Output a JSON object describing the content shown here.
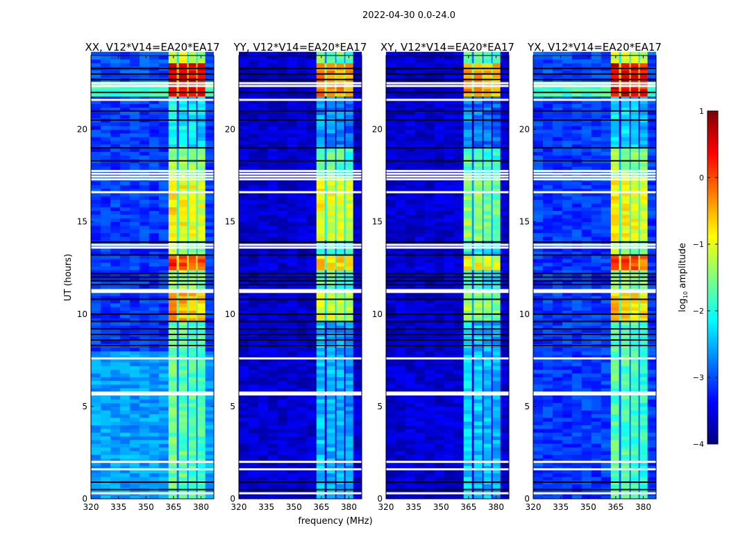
{
  "chart_data": {
    "type": "heatmap",
    "title": "2022-04-30 0.0-24.0",
    "xlabel": "frequency (MHz)",
    "ylabel": "UT (hours)",
    "xlim": [
      320,
      387
    ],
    "ylim": [
      0,
      24
    ],
    "xticks": [
      320,
      335,
      350,
      365,
      380
    ],
    "yticks": [
      0,
      5,
      10,
      15,
      20
    ],
    "colorbar": {
      "label": "log",
      "label_sub": "10",
      "label_rest": " amplitude",
      "range": [
        -4,
        1
      ],
      "ticks": [
        1,
        0,
        -1,
        -2,
        -3,
        -4
      ],
      "tick_labels": [
        "1",
        "0",
        "−1",
        "−2",
        "−3",
        "−4"
      ],
      "colormap": "jet"
    },
    "rfi_bands_mhz": [
      [
        362.3,
        366.8
      ],
      [
        367.9,
        372.5
      ],
      [
        373.2,
        377.4
      ],
      [
        378.1,
        382.3
      ]
    ],
    "flagged_rows_hours": [
      0.3,
      1.6,
      2.0,
      5.65,
      5.75,
      7.6,
      11.2,
      11.3,
      13.6,
      13.75,
      16.6,
      17.3,
      17.45,
      17.6,
      17.75,
      21.6,
      22.35,
      22.5
    ],
    "dark_rows_hours": [
      0.5,
      0.9,
      8.3,
      8.6,
      8.9,
      9.2,
      9.6,
      10.0,
      10.8,
      11.6,
      11.8,
      12.0,
      12.2,
      13.2,
      13.9,
      18.3,
      19.0,
      20.5,
      21.0,
      22.0,
      22.7,
      23.0,
      23.3
    ],
    "panels": [
      {
        "title": "XX, V12*V14=EA20*EA17",
        "background": [
          {
            "t": [
              0,
              8
            ],
            "level": -2.6
          },
          {
            "t": [
              8,
              21.8
            ],
            "level": -3.1
          },
          {
            "t": [
              21.8,
              22.6
            ],
            "level": -1.8
          },
          {
            "t": [
              22.6,
              24
            ],
            "level": -3.0
          }
        ],
        "band": [
          {
            "t": [
              0,
              5.7
            ],
            "level": -1.6
          },
          {
            "t": [
              5.7,
              9.5
            ],
            "level": -1.6
          },
          {
            "t": [
              9.5,
              11.2
            ],
            "level": -0.4
          },
          {
            "t": [
              11.2,
              12.3
            ],
            "level": -1.2
          },
          {
            "t": [
              12.3,
              13.1
            ],
            "level": 0.2
          },
          {
            "t": [
              13.1,
              14.0
            ],
            "level": -1.2
          },
          {
            "t": [
              14.0,
              17.4
            ],
            "level": -0.8
          },
          {
            "t": [
              17.4,
              19.0
            ],
            "level": -1.3
          },
          {
            "t": [
              19.0,
              21.8
            ],
            "level": -2.1
          },
          {
            "t": [
              21.8,
              23.5
            ],
            "level": 0.6
          },
          {
            "t": [
              23.5,
              24
            ],
            "level": -1.0
          }
        ]
      },
      {
        "title": "YY, V12*V14=EA20*EA17",
        "background": [
          {
            "t": [
              0,
              24
            ],
            "level": -3.6
          }
        ],
        "band": [
          {
            "t": [
              0,
              9.5
            ],
            "level": -2.4
          },
          {
            "t": [
              9.5,
              11.2
            ],
            "level": -1.0
          },
          {
            "t": [
              11.2,
              12.3
            ],
            "level": -1.7
          },
          {
            "t": [
              12.3,
              13.1
            ],
            "level": -0.6
          },
          {
            "t": [
              13.1,
              14.0
            ],
            "level": -1.8
          },
          {
            "t": [
              14.0,
              17.4
            ],
            "level": -0.9
          },
          {
            "t": [
              17.4,
              19.0
            ],
            "level": -1.6
          },
          {
            "t": [
              19.0,
              21.8
            ],
            "level": -2.6
          },
          {
            "t": [
              21.8,
              23.5
            ],
            "level": -0.2
          },
          {
            "t": [
              23.5,
              24
            ],
            "level": -1.5
          }
        ]
      },
      {
        "title": "XY, V12*V14=EA20*EA17",
        "background": [
          {
            "t": [
              0,
              24
            ],
            "level": -3.6
          }
        ],
        "band": [
          {
            "t": [
              0,
              9.5
            ],
            "level": -2.3
          },
          {
            "t": [
              9.5,
              11.2
            ],
            "level": -1.3
          },
          {
            "t": [
              11.2,
              12.3
            ],
            "level": -1.9
          },
          {
            "t": [
              12.3,
              13.1
            ],
            "level": -0.8
          },
          {
            "t": [
              13.1,
              14.0
            ],
            "level": -2.0
          },
          {
            "t": [
              14.0,
              17.4
            ],
            "level": -1.4
          },
          {
            "t": [
              17.4,
              19.0
            ],
            "level": -1.7
          },
          {
            "t": [
              19.0,
              21.8
            ],
            "level": -2.7
          },
          {
            "t": [
              21.8,
              23.5
            ],
            "level": -0.3
          },
          {
            "t": [
              23.5,
              24
            ],
            "level": -1.6
          }
        ]
      },
      {
        "title": "YX, V12*V14=EA20*EA17",
        "background": [
          {
            "t": [
              0,
              21.8
            ],
            "level": -3.1
          },
          {
            "t": [
              21.8,
              22.6
            ],
            "level": -1.8
          },
          {
            "t": [
              22.6,
              24
            ],
            "level": -3.0
          }
        ],
        "band": [
          {
            "t": [
              0,
              9.5
            ],
            "level": -1.7
          },
          {
            "t": [
              9.5,
              11.2
            ],
            "level": -0.6
          },
          {
            "t": [
              11.2,
              12.3
            ],
            "level": -1.3
          },
          {
            "t": [
              12.3,
              13.1
            ],
            "level": 0.1
          },
          {
            "t": [
              13.1,
              14.0
            ],
            "level": -1.3
          },
          {
            "t": [
              14.0,
              17.4
            ],
            "level": -0.8
          },
          {
            "t": [
              17.4,
              19.0
            ],
            "level": -1.3
          },
          {
            "t": [
              19.0,
              21.8
            ],
            "level": -2.2
          },
          {
            "t": [
              21.8,
              23.5
            ],
            "level": 0.5
          },
          {
            "t": [
              23.5,
              24
            ],
            "level": -1.0
          }
        ]
      }
    ]
  }
}
